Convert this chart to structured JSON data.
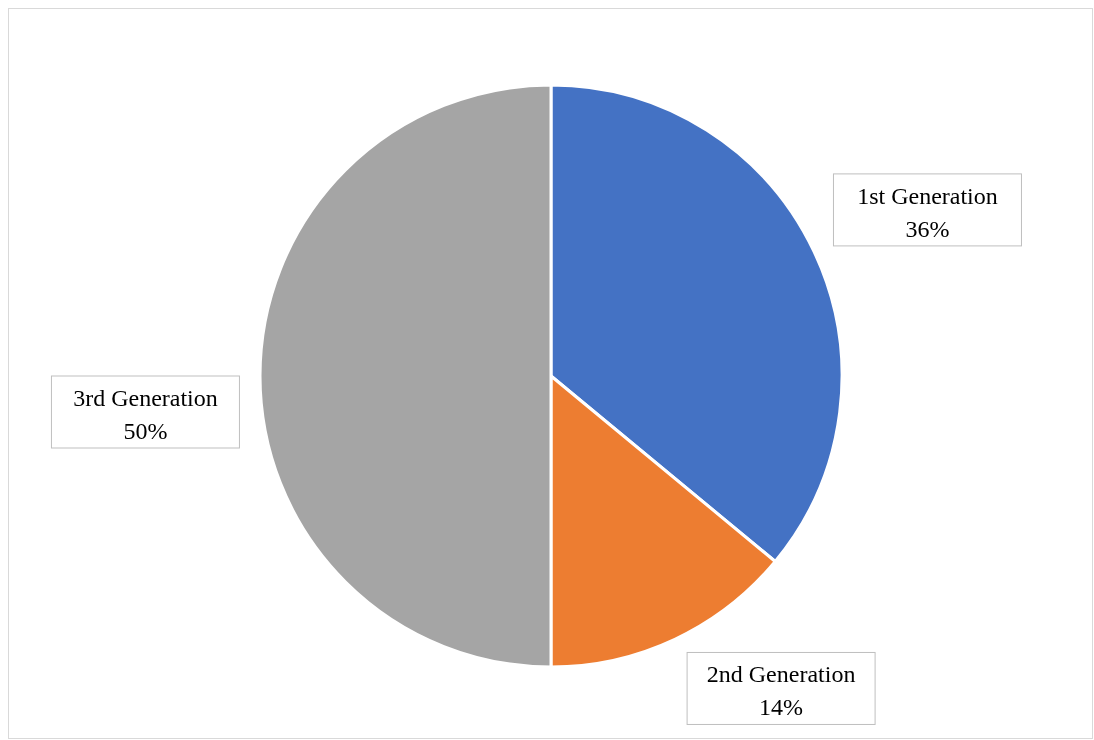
{
  "chart_data": {
    "type": "pie",
    "categories": [
      "1st Generation",
      "2nd Generation",
      "3rd Generation"
    ],
    "values": [
      36,
      14,
      50
    ],
    "colors": [
      "#4472c4",
      "#ed7d31",
      "#a5a5a5"
    ],
    "value_labels": [
      "36%",
      "14%",
      "50%"
    ]
  }
}
